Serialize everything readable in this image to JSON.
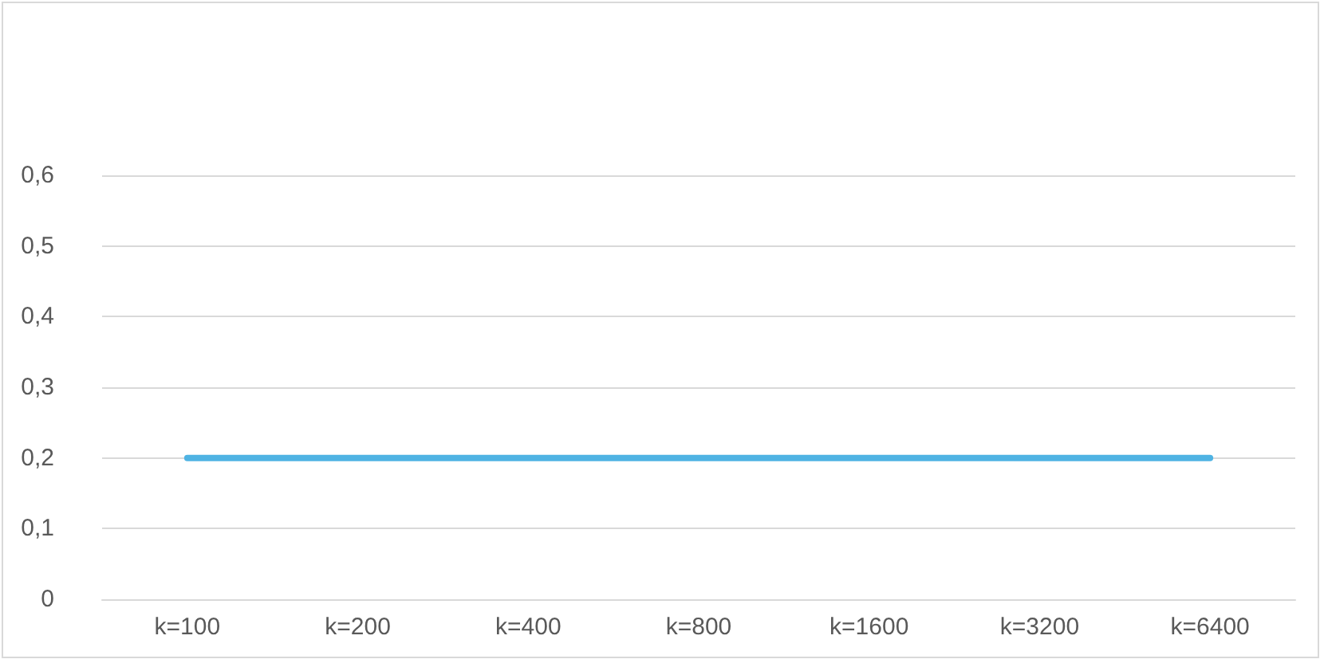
{
  "chart_data": {
    "type": "line",
    "categories": [
      "k=100",
      "k=200",
      "k=400",
      "k=800",
      "k=1600",
      "k=3200",
      "k=6400"
    ],
    "series": [
      {
        "color": "#4fb3e3",
        "values": [
          0.2,
          0.2,
          0.2,
          0.2,
          0.2,
          0.2,
          0.2
        ]
      }
    ],
    "ylim": [
      0,
      0.6
    ],
    "yticks": [
      0,
      {
        "value": 0.1,
        "label": "0,1"
      },
      {
        "value": 0.2,
        "label": "0,2"
      },
      {
        "value": 0.3,
        "label": "0,3"
      },
      {
        "value": 0.4,
        "label": "0,4"
      },
      {
        "value": 0.5,
        "label": "0,5"
      },
      {
        "value": 0.6,
        "label": "0,6"
      }
    ],
    "grid": "y",
    "marker": "none",
    "line_style": "solid"
  }
}
